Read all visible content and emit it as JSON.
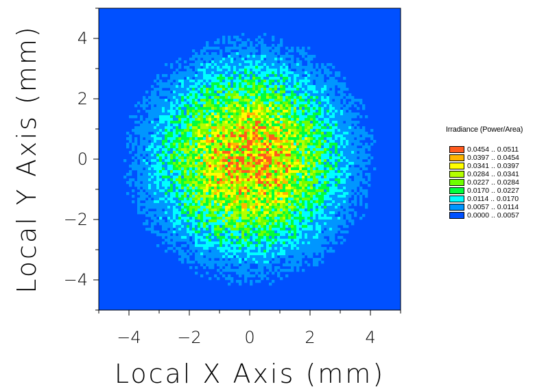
{
  "chart_data": {
    "type": "heatmap",
    "title": "",
    "xlabel": "Local X Axis (mm)",
    "ylabel": "Local Y Axis (mm)",
    "xlim": [
      -5,
      5
    ],
    "ylim": [
      -5,
      5
    ],
    "x_ticks": [
      -4,
      -2,
      0,
      2,
      4
    ],
    "y_ticks": [
      -4,
      -2,
      0,
      2,
      4
    ],
    "x_tick_labels": [
      "−4",
      "−2",
      "0",
      "2",
      "4"
    ],
    "y_tick_labels": [
      "−4",
      "−2",
      "0",
      "2",
      "4"
    ],
    "grid": false,
    "distribution": {
      "shape": "circular, centered",
      "center": [
        0,
        0
      ],
      "peak_value": 0.0511,
      "half_max_radius_mm": 2.3,
      "outer_edge_radius_mm": 4.2
    },
    "colorbar": {
      "title": "Irradiance (Power/Area)",
      "placement": "right",
      "bins": [
        {
          "label": "0.0454 .. 0.0511",
          "min": 0.0454,
          "max": 0.0511,
          "color": "#ff5a1e"
        },
        {
          "label": "0.0397 .. 0.0454",
          "min": 0.0397,
          "max": 0.0454,
          "color": "#ffb400"
        },
        {
          "label": "0.0341 .. 0.0397",
          "min": 0.0341,
          "max": 0.0397,
          "color": "#ffff00"
        },
        {
          "label": "0.0284 .. 0.0341",
          "min": 0.0284,
          "max": 0.0341,
          "color": "#b4ff00"
        },
        {
          "label": "0.0227 .. 0.0284",
          "min": 0.0227,
          "max": 0.0284,
          "color": "#6eff00"
        },
        {
          "label": "0.0170 .. 0.0227",
          "min": 0.017,
          "max": 0.0227,
          "color": "#00ff3c"
        },
        {
          "label": "0.0114 .. 0.0170",
          "min": 0.0114,
          "max": 0.017,
          "color": "#00ffff"
        },
        {
          "label": "0.0057 .. 0.0114",
          "min": 0.0057,
          "max": 0.0114,
          "color": "#0096ff"
        },
        {
          "label": "0.0000 .. 0.0057",
          "min": 0.0,
          "max": 0.0057,
          "color": "#0050ff"
        }
      ]
    }
  }
}
